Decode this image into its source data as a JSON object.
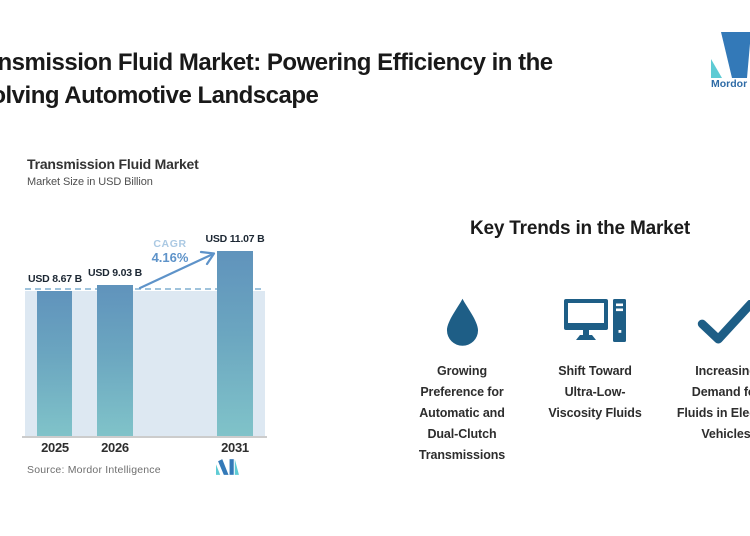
{
  "header": {
    "title_line1": "Transmission Fluid Market: Powering Efficiency in the",
    "title_line2": "Evolving Automotive Landscape",
    "brand_name": "Mordor Intelligence"
  },
  "chart": {
    "title": "Transmission Fluid Market",
    "subtitle": "Market Size in USD Billion",
    "source": "Source: Mordor Intelligence"
  },
  "chart_data": {
    "type": "bar",
    "title": "Transmission Fluid Market",
    "ylabel": "Market Size in USD Billion",
    "categories": [
      "2025",
      "2026",
      "2031"
    ],
    "values": [
      8.67,
      9.03,
      11.07
    ],
    "value_labels": [
      "USD 8.67 B",
      "USD 9.03 B",
      "USD 11.07 B"
    ],
    "unit": "USD Billion",
    "annotations": {
      "cagr_label": "CAGR",
      "cagr_value": "4.16%",
      "baseline_dashed_at": 8.67
    },
    "legend": "none",
    "grid": false,
    "bar_color_top": "#6093bc",
    "bar_color_bottom": "#80c3c9",
    "plot_background": "#dde8f2"
  },
  "trends": {
    "heading": "Key Trends in the Market",
    "items": [
      {
        "icon": "water-drop-icon",
        "label": "Growing\nPreference for\nAutomatic and\nDual-Clutch\nTransmissions"
      },
      {
        "icon": "desktop-computer-icon",
        "label": "Shift Toward\nUltra-Low-\nViscosity Fluids"
      },
      {
        "icon": "checkmark-icon",
        "label": "Increasing\nDemand for\nFluids in Electric\nVehicles"
      }
    ]
  },
  "colors": {
    "accent_blue": "#5e93c9",
    "cagr_light_blue": "#abc9e3",
    "icon_blue": "#1e5e86",
    "logo_blue": "#3379b8",
    "logo_teal": "#5ecbd4"
  }
}
